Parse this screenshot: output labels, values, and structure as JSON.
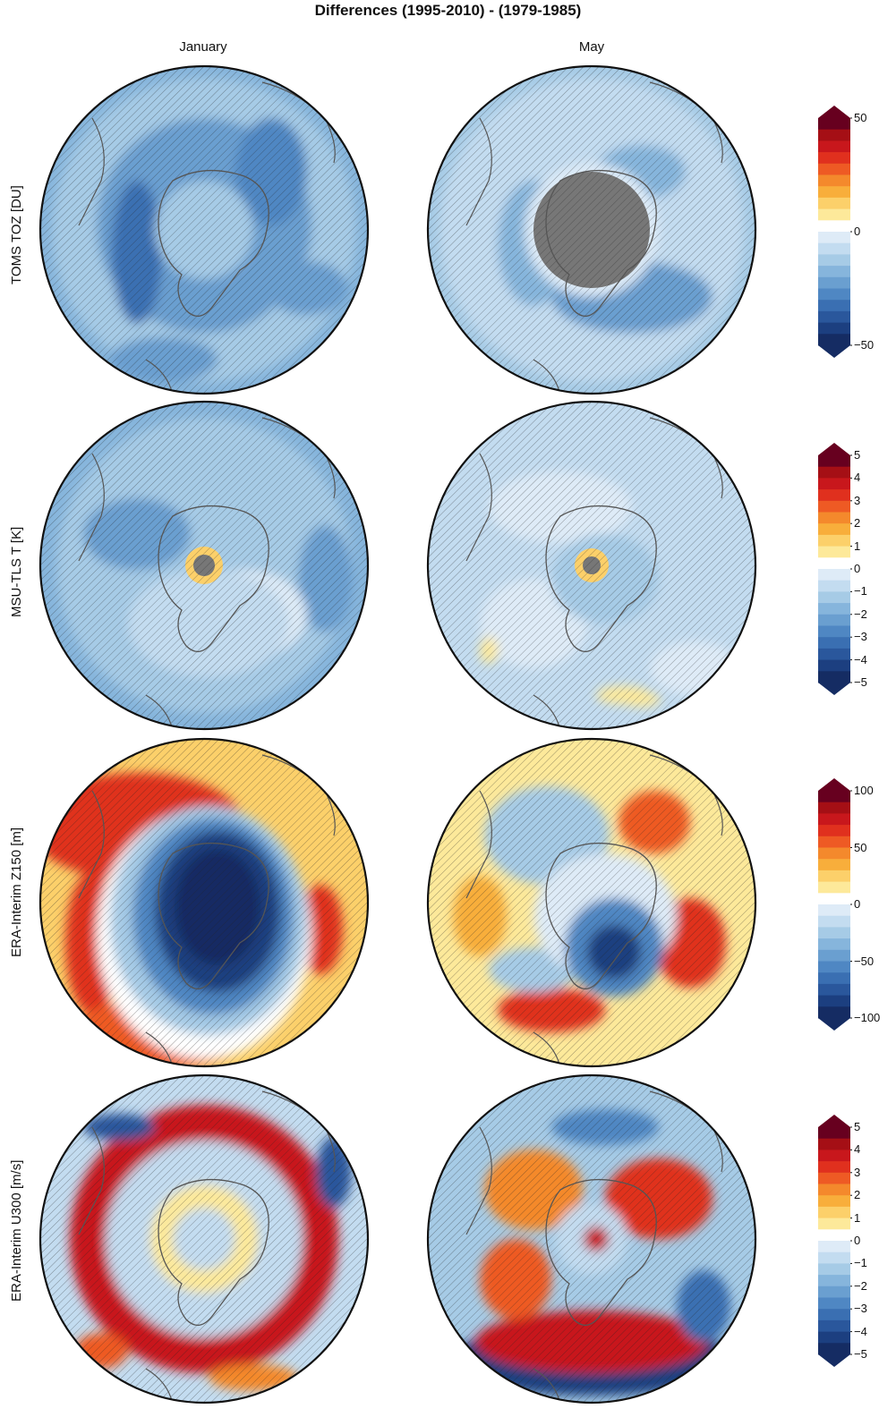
{
  "figure": {
    "title": "Differences (1995-2010) - (1979-1985)",
    "columns": [
      "January",
      "May"
    ]
  },
  "rows": [
    {
      "label": "TOMS TOZ [DU]",
      "ticks": [
        "50",
        "0",
        "−50"
      ],
      "panels": [
        {
          "month": "January",
          "pattern": "toz-jan"
        },
        {
          "month": "May",
          "pattern": "toz-may"
        }
      ]
    },
    {
      "label": "MSU-TLS T [K]",
      "ticks": [
        "5",
        "4",
        "3",
        "2",
        "1",
        "0",
        "−1",
        "−2",
        "−3",
        "−4",
        "−5"
      ],
      "panels": [
        {
          "month": "January",
          "pattern": "tls-jan"
        },
        {
          "month": "May",
          "pattern": "tls-may"
        }
      ]
    },
    {
      "label": "ERA-Interim Z150 [m]",
      "ticks": [
        "100",
        "50",
        "0",
        "−50",
        "−100"
      ],
      "panels": [
        {
          "month": "January",
          "pattern": "z150-jan"
        },
        {
          "month": "May",
          "pattern": "z150-may"
        }
      ]
    },
    {
      "label": "ERA-Interim U300 [m/s]",
      "ticks": [
        "5",
        "4",
        "3",
        "2",
        "1",
        "0",
        "−1",
        "−2",
        "−3",
        "−4",
        "−5"
      ],
      "panels": [
        {
          "month": "January",
          "pattern": "u300-jan"
        },
        {
          "month": "May",
          "pattern": "u300-may"
        }
      ]
    }
  ],
  "colors": {
    "scale": [
      "#67001f",
      "#a50f15",
      "#c8171c",
      "#e0301e",
      "#ee5a24",
      "#f4892c",
      "#f8ae3b",
      "#fcd06a",
      "#fde99a",
      "#ffffff",
      "#deebf7",
      "#c3dcf0",
      "#a6cbe6",
      "#86b5dc",
      "#6a9fd0",
      "#4f87c3",
      "#3a6fb2",
      "#2a579c",
      "#1c3f80",
      "#152c63"
    ],
    "land": "#555555",
    "mask": "#777777",
    "outline": "#111111"
  }
}
